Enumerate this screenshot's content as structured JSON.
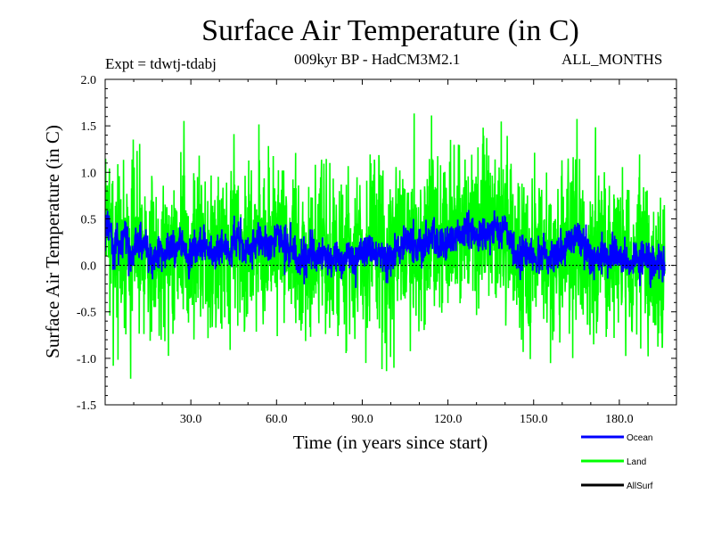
{
  "header": {
    "title": "Surface Air Temperature (in C)",
    "experiment": "Expt = tdwtj-tdabj",
    "subtitle": "009kyr BP - HadCM3M2.1",
    "months": "ALL_MONTHS"
  },
  "chart_data": {
    "type": "line",
    "title": "Surface Air Temperature (in C)",
    "xlabel": "Time (in years since start)",
    "ylabel": "Surface Air Temperature (in C)",
    "xlim": [
      0,
      200
    ],
    "ylim": [
      -1.5,
      2.0
    ],
    "x_ticks": [
      30,
      60,
      90,
      120,
      150,
      180
    ],
    "x_tick_labels": [
      "30.0",
      "60.0",
      "90.0",
      "120.0",
      "150.0",
      "180.0"
    ],
    "y_ticks": [
      -1.5,
      -1.0,
      -0.5,
      0.0,
      0.5,
      1.0,
      1.5,
      2.0
    ],
    "y_tick_labels": [
      "-1.5",
      "-1.0",
      "-0.5",
      "0.0",
      "0.5",
      "1.0",
      "1.5",
      "2.0"
    ],
    "zero_line": true,
    "legend_position": "bottom-right",
    "series": [
      {
        "name": "Land",
        "color": "#00ff00",
        "samples_per_year": 12,
        "values": [
          0.72,
          0.55,
          0.35,
          0.2,
          0.32,
          0.18,
          0.25,
          0.28,
          0.2,
          0.05,
          0.22,
          0.35,
          0.28,
          0.25,
          0.3,
          0.12,
          0.05,
          0.08,
          0.12,
          0.22,
          0.18,
          0.15,
          0.25,
          0.3,
          0.1,
          0.12,
          0.28,
          0.22,
          0.2,
          0.0,
          0.12,
          0.22,
          0.15,
          0.28,
          0.22,
          0.26,
          0.22,
          0.15,
          0.12,
          0.05,
          0.18,
          0.22,
          0.22,
          0.1,
          0.15,
          0.35,
          0.3,
          0.35,
          0.25,
          0.1,
          0.15,
          0.22,
          0.18,
          0.22,
          0.25,
          0.28,
          0.3,
          0.2,
          0.3,
          0.22,
          0.45,
          0.3,
          0.28,
          0.25,
          0.15,
          0.22,
          0.18,
          0.05,
          0.02,
          0.1,
          0.05,
          0.12,
          0.2,
          0.12,
          0.05,
          0.12,
          0.15,
          0.05,
          0.12,
          0.02,
          0.05,
          0.15,
          0.12,
          0.0,
          0.05,
          0.1,
          0.02,
          0.0,
          0.05,
          0.12,
          0.18,
          0.12,
          0.18,
          0.15,
          0.22,
          0.12,
          0.15,
          0.1,
          0.05,
          0.02,
          0.1,
          0.08,
          0.25,
          0.18,
          0.25,
          0.22,
          0.32,
          0.28,
          0.22,
          0.15,
          0.25,
          0.22,
          0.28,
          0.32,
          0.35,
          0.42,
          0.28,
          0.22,
          0.32,
          0.25,
          0.3,
          0.25,
          0.3,
          0.35,
          0.35,
          0.35,
          0.42,
          0.38,
          0.42,
          0.35,
          0.35,
          0.3,
          0.45,
          0.38,
          0.4,
          0.35,
          0.42,
          0.45,
          0.4,
          0.38,
          0.45,
          0.35,
          0.3,
          0.2,
          0.1,
          0.05,
          0.12,
          0.22,
          0.05,
          0.1,
          0.05,
          0.02,
          0.12,
          0.15,
          0.1,
          0.05,
          0.1,
          0.05,
          0.15,
          0.12,
          0.2,
          0.25,
          0.28,
          0.25,
          0.28,
          0.35,
          0.32,
          0.22,
          0.18,
          0.15,
          0.1,
          0.05,
          0.1,
          0.05,
          0.15,
          0.1,
          0.05,
          0.15,
          0.15,
          0.08,
          0.18,
          0.05,
          0.1,
          0.05,
          0.0,
          0.05,
          0.02,
          0.0,
          0.1,
          0.08,
          0.12,
          -0.05,
          0.05,
          0.02,
          0.05,
          0.02
        ],
        "noise_amplitude": 0.55,
        "seed": 7
      },
      {
        "name": "Ocean",
        "color": "#0000ff",
        "samples_per_year": 12,
        "values": [
          0.4,
          0.45,
          0.35,
          0.2,
          0.25,
          0.2,
          0.25,
          0.3,
          0.2,
          0.05,
          0.15,
          0.28,
          0.25,
          0.22,
          0.28,
          0.12,
          0.05,
          0.05,
          0.1,
          0.2,
          0.15,
          0.12,
          0.2,
          0.25,
          0.12,
          0.1,
          0.28,
          0.2,
          0.18,
          0.05,
          0.1,
          0.22,
          0.15,
          0.25,
          0.2,
          0.25,
          0.22,
          0.15,
          0.1,
          0.08,
          0.18,
          0.22,
          0.2,
          0.12,
          0.15,
          0.3,
          0.28,
          0.3,
          0.22,
          0.12,
          0.15,
          0.2,
          0.18,
          0.22,
          0.25,
          0.25,
          0.28,
          0.2,
          0.28,
          0.2,
          0.4,
          0.3,
          0.25,
          0.22,
          0.15,
          0.2,
          0.18,
          0.05,
          0.05,
          0.1,
          0.05,
          0.12,
          0.18,
          0.12,
          0.05,
          0.1,
          0.15,
          0.05,
          0.1,
          0.05,
          0.05,
          0.12,
          0.1,
          0.02,
          0.05,
          0.1,
          0.05,
          0.02,
          0.05,
          0.1,
          0.15,
          0.12,
          0.15,
          0.15,
          0.2,
          0.12,
          0.15,
          0.1,
          0.05,
          0.05,
          0.1,
          0.08,
          0.22,
          0.18,
          0.22,
          0.2,
          0.28,
          0.25,
          0.2,
          0.15,
          0.22,
          0.2,
          0.25,
          0.28,
          0.32,
          0.38,
          0.25,
          0.2,
          0.28,
          0.22,
          0.28,
          0.25,
          0.28,
          0.32,
          0.32,
          0.32,
          0.4,
          0.35,
          0.4,
          0.32,
          0.32,
          0.3,
          0.42,
          0.35,
          0.38,
          0.32,
          0.4,
          0.42,
          0.38,
          0.35,
          0.42,
          0.35,
          0.28,
          0.2,
          0.1,
          0.05,
          0.12,
          0.2,
          0.05,
          0.1,
          0.05,
          0.02,
          0.1,
          0.12,
          0.1,
          0.05,
          0.1,
          0.05,
          0.12,
          0.12,
          0.18,
          0.22,
          0.25,
          0.22,
          0.25,
          0.32,
          0.3,
          0.2,
          0.15,
          0.15,
          0.1,
          0.05,
          0.1,
          0.05,
          0.12,
          0.1,
          0.05,
          0.12,
          0.12,
          0.08,
          0.15,
          0.05,
          0.1,
          0.05,
          0.02,
          0.05,
          0.02,
          0.0,
          0.1,
          0.08,
          0.1,
          -0.05,
          0.05,
          0.02,
          0.05,
          0.02
        ],
        "noise_amplitude": 0.12,
        "seed": 31
      },
      {
        "name": "AllSurf",
        "color": "#000000",
        "samples_per_year": 12,
        "values": [
          0.45,
          0.47,
          0.35,
          0.2,
          0.26,
          0.2,
          0.25,
          0.3,
          0.2,
          0.05,
          0.16,
          0.29,
          0.26,
          0.23,
          0.29,
          0.12,
          0.05,
          0.06,
          0.1,
          0.2,
          0.16,
          0.13,
          0.21,
          0.26,
          0.12,
          0.1,
          0.28,
          0.2,
          0.18,
          0.04,
          0.1,
          0.22,
          0.15,
          0.26,
          0.2,
          0.25,
          0.22,
          0.15,
          0.1,
          0.07,
          0.18,
          0.22,
          0.2,
          0.11,
          0.15,
          0.31,
          0.28,
          0.31,
          0.23,
          0.11,
          0.15,
          0.2,
          0.18,
          0.22,
          0.25,
          0.26,
          0.29,
          0.2,
          0.28,
          0.2,
          0.41,
          0.3,
          0.26,
          0.23,
          0.15,
          0.2,
          0.18,
          0.05,
          0.04,
          0.1,
          0.05,
          0.12,
          0.19,
          0.12,
          0.05,
          0.11,
          0.15,
          0.05,
          0.11,
          0.04,
          0.05,
          0.13,
          0.11,
          0.01,
          0.05,
          0.1,
          0.04,
          0.01,
          0.05,
          0.11,
          0.16,
          0.12,
          0.16,
          0.15,
          0.21,
          0.12,
          0.15,
          0.1,
          0.05,
          0.04,
          0.1,
          0.08,
          0.23,
          0.18,
          0.23,
          0.21,
          0.29,
          0.26,
          0.21,
          0.15,
          0.23,
          0.21,
          0.26,
          0.29,
          0.33,
          0.39,
          0.26,
          0.21,
          0.29,
          0.23,
          0.29,
          0.25,
          0.29,
          0.33,
          0.33,
          0.33,
          0.41,
          0.36,
          0.41,
          0.33,
          0.33,
          0.3,
          0.43,
          0.36,
          0.39,
          0.33,
          0.41,
          0.43,
          0.39,
          0.36,
          0.43,
          0.35,
          0.29,
          0.2,
          0.1,
          0.05,
          0.12,
          0.21,
          0.05,
          0.1,
          0.05,
          0.02,
          0.11,
          0.13,
          0.1,
          0.05,
          0.1,
          0.05,
          0.13,
          0.12,
          0.19,
          0.23,
          0.26,
          0.23,
          0.26,
          0.33,
          0.31,
          0.21,
          0.16,
          0.15,
          0.1,
          0.05,
          0.1,
          0.05,
          0.13,
          0.1,
          0.05,
          0.13,
          0.13,
          0.08,
          0.16,
          0.05,
          0.1,
          0.05,
          0.01,
          0.05,
          0.02,
          0.0,
          0.1,
          0.08,
          0.11,
          -0.05,
          0.05,
          0.02,
          0.05,
          0.02
        ],
        "noise_amplitude": 0.12,
        "seed": 31
      }
    ]
  }
}
